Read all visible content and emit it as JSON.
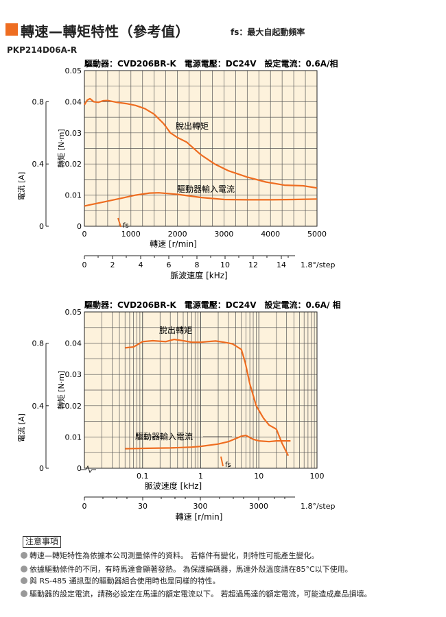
{
  "header": {
    "title": "轉速—轉矩特性（參考值）",
    "subtitle": "fs：最大自起動頻率",
    "model": "PKP214D06A-R"
  },
  "chart_data": [
    {
      "type": "line",
      "scale": "linear",
      "driver_info": "驅動器：CVD206BR-K　電源電壓：DC24V　設定電流：0.6A/相",
      "xlabel": "轉速 [r/min]",
      "ylabel": "轉矩 [N·m]",
      "y2label": "電流 [A]",
      "secondary_xlabel": "脈波速度 [kHz]",
      "step_angle": "1.8°/step",
      "xlim": [
        0,
        5000
      ],
      "ylim": [
        0,
        0.05
      ],
      "y2lim": [
        0,
        1.0
      ],
      "xticks": [
        "0",
        "1000",
        "2000",
        "3000",
        "4000",
        "5000"
      ],
      "yticks": [
        "0",
        "0.01",
        "0.02",
        "0.03",
        "0.04",
        "0.05"
      ],
      "y2ticks": [
        "0",
        "0.4",
        "0.8"
      ],
      "secondary_xticks": [
        "0",
        "2",
        "4",
        "6",
        "8",
        "10",
        "12",
        "14"
      ],
      "fs_label": "fs",
      "series": [
        {
          "name": "脫出轉矩",
          "color": "#ee6d21",
          "x": [
            0,
            60,
            120,
            200,
            300,
            400,
            500,
            700,
            900,
            1100,
            1300,
            1500,
            1700,
            1850,
            2000,
            2200,
            2500,
            2800,
            3100,
            3500,
            3900,
            4300,
            4700,
            5000
          ],
          "y": [
            0.039,
            0.0405,
            0.041,
            0.04,
            0.0398,
            0.0403,
            0.0404,
            0.0398,
            0.0394,
            0.0388,
            0.0378,
            0.036,
            0.033,
            0.03,
            0.0285,
            0.027,
            0.023,
            0.02,
            0.0178,
            0.0158,
            0.0142,
            0.0132,
            0.013,
            0.0123
          ]
        },
        {
          "name": "驅動器輸入電流",
          "color": "#ee6d21",
          "unit": "A",
          "x": [
            0,
            400,
            800,
            1100,
            1400,
            1600,
            2000,
            2500,
            3000,
            3500,
            4000,
            4500,
            5000
          ],
          "y": [
            0.13,
            0.155,
            0.18,
            0.2,
            0.213,
            0.215,
            0.205,
            0.185,
            0.172,
            0.17,
            0.17,
            0.172,
            0.175
          ]
        }
      ]
    },
    {
      "type": "line",
      "scale": "log",
      "driver_info": "驅動器：CVD206BR-K　電源電壓：DC24V　設定電流：0.6A/ 相",
      "xlabel": "脈波速度 [kHz]",
      "ylabel": "轉矩 [N·m]",
      "y2label": "電流 [A]",
      "secondary_xlabel": "轉速 [r/min]",
      "step_angle": "1.8°/step",
      "xlim": [
        0.01,
        100
      ],
      "ylim": [
        0,
        0.05
      ],
      "y2lim": [
        0,
        1.0
      ],
      "xticks": [
        "0.1",
        "1",
        "10",
        "100"
      ],
      "yticks": [
        "0",
        "0.01",
        "0.02",
        "0.03",
        "0.04",
        "0.05"
      ],
      "y2ticks": [
        "0",
        "0.4",
        "0.8"
      ],
      "secondary_xticks": [
        "0",
        "30",
        "300",
        "3000"
      ],
      "fs_label": "fs",
      "series": [
        {
          "name": "脫出轉矩",
          "color": "#ee6d21",
          "x": [
            0.05,
            0.07,
            0.1,
            0.15,
            0.25,
            0.35,
            0.5,
            0.7,
            1.0,
            1.3,
            1.8,
            2.5,
            3.5,
            5.0,
            5.8,
            7.0,
            9.0,
            12.0,
            15.0,
            20.0,
            25.0,
            32.0
          ],
          "y": [
            0.0385,
            0.0388,
            0.0405,
            0.0408,
            0.0405,
            0.0412,
            0.0408,
            0.0403,
            0.0403,
            0.0405,
            0.0407,
            0.0403,
            0.0398,
            0.038,
            0.034,
            0.027,
            0.02,
            0.016,
            0.0138,
            0.0125,
            0.008,
            0.004
          ]
        },
        {
          "name": "驅動器輸入電流",
          "color": "#ee6d21",
          "unit": "A",
          "x": [
            0.05,
            0.1,
            0.3,
            0.7,
            1.0,
            2.0,
            3.0,
            4.0,
            5.0,
            6.0,
            8.0,
            10.0,
            15.0,
            20.0,
            25.0,
            35.0
          ],
          "y": [
            0.125,
            0.127,
            0.13,
            0.135,
            0.14,
            0.155,
            0.17,
            0.19,
            0.205,
            0.21,
            0.185,
            0.175,
            0.17,
            0.175,
            0.175,
            0.175
          ]
        }
      ]
    }
  ],
  "notes": {
    "heading": "注意事項",
    "items": [
      "轉速—轉矩特性為依據本公司測量條件的資料。 若條件有變化，則特性可能產生變化。",
      "依據驅動條件的不同，有時馬達會顯著發熱。 為保護編碼器，馬達外殼溫度請在85°C以下使用。",
      "與 RS-485 通訊型的驅動器組合使用時也是同樣的特性。",
      "驅動器的設定電流，請務必設定在馬達的額定電流以下。 若超過馬達的額定電流，可能造成產品損壞。"
    ]
  }
}
